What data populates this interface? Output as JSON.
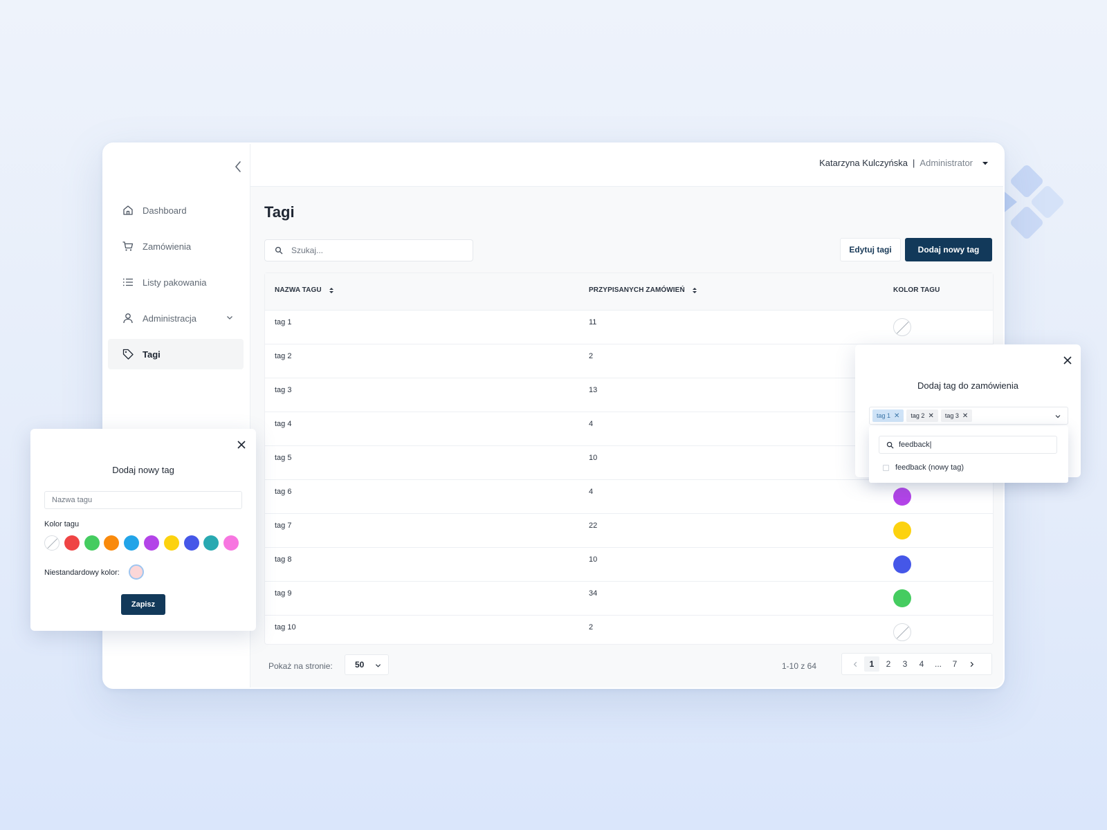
{
  "user": {
    "name": "Katarzyna Kulczyńska",
    "separator": "|",
    "role": "Administrator"
  },
  "sidebar": {
    "items": [
      {
        "label": "Dashboard",
        "icon": "home-icon"
      },
      {
        "label": "Zamówienia",
        "icon": "cart-icon"
      },
      {
        "label": "Listy pakowania",
        "icon": "list-icon"
      },
      {
        "label": "Administracja",
        "icon": "user-icon"
      },
      {
        "label": "Tagi",
        "icon": "tag-icon",
        "active": true
      }
    ]
  },
  "page": {
    "title": "Tagi"
  },
  "search": {
    "placeholder": "Szukaj..."
  },
  "toolbar": {
    "edit_label": "Edytuj tagi",
    "add_label": "Dodaj nowy tag"
  },
  "table": {
    "headers": {
      "name": "NAZWA TAGU",
      "orders": "PRZYPISANYCH ZAMÓWIEŃ",
      "color": "KOLOR TAGU"
    },
    "rows": [
      {
        "name": "tag 1",
        "orders": "11",
        "color": "none"
      },
      {
        "name": "tag 2",
        "orders": "2",
        "color": "#ef4444"
      },
      {
        "name": "tag 3",
        "orders": "13",
        "color": "#f97316"
      },
      {
        "name": "tag 4",
        "orders": "4",
        "color": "#22a4e8"
      },
      {
        "name": "tag 5",
        "orders": "10",
        "color": "#29a9b1"
      },
      {
        "name": "tag 6",
        "orders": "4",
        "color": "#b344e8"
      },
      {
        "name": "tag 7",
        "orders": "22",
        "color": "#fcd20f"
      },
      {
        "name": "tag 8",
        "orders": "10",
        "color": "#4557e8"
      },
      {
        "name": "tag 9",
        "orders": "34",
        "color": "#45cc60"
      },
      {
        "name": "tag 10",
        "orders": "2",
        "color": "none"
      }
    ]
  },
  "pagination": {
    "per_page_label": "Pokaż na stronie:",
    "per_page_value": "50",
    "range": "1-10 z 64",
    "pages": [
      "1",
      "2",
      "3",
      "4",
      "...",
      "7"
    ],
    "current": "1"
  },
  "modal_new_tag": {
    "title": "Dodaj nowy tag",
    "name_placeholder": "Nazwa tagu",
    "color_label": "Kolor tagu",
    "palette": [
      "none",
      "#ef4444",
      "#45cc60",
      "#f98a0c",
      "#22a4e8",
      "#b344e8",
      "#fcd20f",
      "#4557e8",
      "#29a9b1",
      "#f776e0"
    ],
    "custom_label": "Niestandardowy kolor:",
    "custom_color": "#fcd7d8",
    "save_label": "Zapisz"
  },
  "modal_add_to_order": {
    "title": "Dodaj tag do zamówienia",
    "chips": [
      {
        "label": "tag 1",
        "selected": true
      },
      {
        "label": "tag 2",
        "selected": false
      },
      {
        "label": "tag 3",
        "selected": false
      }
    ],
    "search_value": "feedback|",
    "option_label": "feedback (nowy tag)"
  }
}
